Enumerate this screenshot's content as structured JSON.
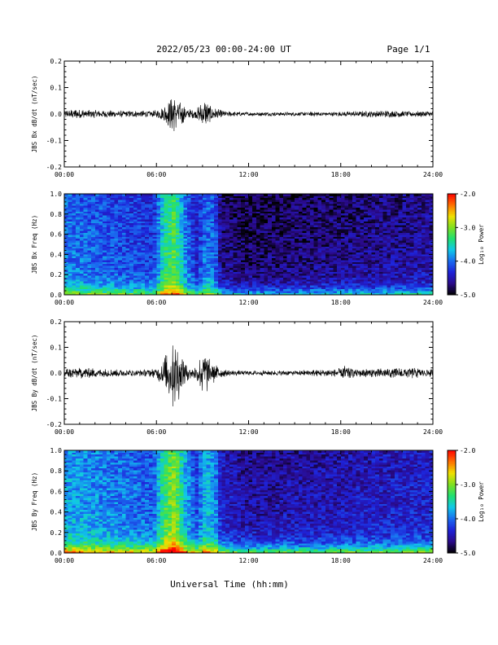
{
  "header": {
    "title": "2022/05/23  00:00-24:00 UT",
    "page": "Page 1/1"
  },
  "x_axis_label": "Universal Time (hh:mm)",
  "x_ticks": [
    "00:00",
    "06:00",
    "12:00",
    "18:00",
    "24:00"
  ],
  "colorbar": {
    "label": "Log₁₀ Power",
    "ticks": [
      "-2.0",
      "-3.0",
      "-4.0",
      "-5.0"
    ],
    "range": [
      -5.0,
      -2.0
    ],
    "colors": [
      "#000000",
      "#2a0a8a",
      "#1e22d8",
      "#1a6cf0",
      "#10c8e8",
      "#20e070",
      "#80e020",
      "#f0e000",
      "#ff7000",
      "#ff0000"
    ]
  },
  "chart_data": [
    {
      "type": "line",
      "ylabel": "JBS Bx dB/dt (nT/sec)",
      "ylim": [
        -0.2,
        0.2
      ],
      "yticks": [
        "0.2",
        "0.1",
        "0.0",
        "-0.1",
        "-0.2"
      ],
      "xlim_hours": [
        0,
        24
      ],
      "color": "#000000",
      "envelope": [
        {
          "t": 0.0,
          "amp": 0.012
        },
        {
          "t": 1.0,
          "amp": 0.015
        },
        {
          "t": 2.0,
          "amp": 0.012
        },
        {
          "t": 3.0,
          "amp": 0.011
        },
        {
          "t": 4.0,
          "amp": 0.01
        },
        {
          "t": 5.0,
          "amp": 0.01
        },
        {
          "t": 6.0,
          "amp": 0.012
        },
        {
          "t": 6.6,
          "amp": 0.03
        },
        {
          "t": 7.1,
          "amp": 0.055
        },
        {
          "t": 7.5,
          "amp": 0.045
        },
        {
          "t": 8.0,
          "amp": 0.015
        },
        {
          "t": 8.6,
          "amp": 0.015
        },
        {
          "t": 9.1,
          "amp": 0.045
        },
        {
          "t": 9.6,
          "amp": 0.02
        },
        {
          "t": 10.5,
          "amp": 0.008
        },
        {
          "t": 12.0,
          "amp": 0.006
        },
        {
          "t": 15.0,
          "amp": 0.006
        },
        {
          "t": 18.0,
          "amp": 0.007
        },
        {
          "t": 20.0,
          "amp": 0.01
        },
        {
          "t": 22.0,
          "amp": 0.01
        },
        {
          "t": 24.0,
          "amp": 0.009
        }
      ]
    },
    {
      "type": "heatmap",
      "ylabel": "JBS Bx Freq (Hz)",
      "ylim": [
        0.0,
        1.0
      ],
      "yticks": [
        "1.0",
        "0.8",
        "0.6",
        "0.4",
        "0.2",
        "0.0"
      ],
      "xlim_hours": [
        0,
        24
      ],
      "zlim": [
        -5.0,
        -2.0
      ],
      "columns": 96,
      "rows": 52,
      "power_profile": [
        {
          "t": 0.0,
          "z": -3.9
        },
        {
          "t": 2.0,
          "z": -4.0
        },
        {
          "t": 4.0,
          "z": -4.1
        },
        {
          "t": 5.8,
          "z": -4.2
        },
        {
          "t": 6.5,
          "z": -3.4
        },
        {
          "t": 7.2,
          "z": -3.1
        },
        {
          "t": 7.8,
          "z": -3.8
        },
        {
          "t": 8.6,
          "z": -4.3
        },
        {
          "t": 9.2,
          "z": -3.9
        },
        {
          "t": 9.8,
          "z": -4.0
        },
        {
          "t": 10.2,
          "z": -4.6
        },
        {
          "t": 12.0,
          "z": -4.7
        },
        {
          "t": 18.0,
          "z": -4.6
        },
        {
          "t": 24.0,
          "z": -4.5
        }
      ],
      "low_freq_boost": 1.1
    },
    {
      "type": "line",
      "ylabel": "JBS By dB/dt (nT/sec)",
      "ylim": [
        -0.2,
        0.2
      ],
      "yticks": [
        "0.2",
        "0.1",
        "0.0",
        "-0.1",
        "-0.2"
      ],
      "xlim_hours": [
        0,
        24
      ],
      "color": "#000000",
      "envelope": [
        {
          "t": 0.0,
          "amp": 0.015
        },
        {
          "t": 1.0,
          "amp": 0.018
        },
        {
          "t": 2.0,
          "amp": 0.014
        },
        {
          "t": 3.0,
          "amp": 0.012
        },
        {
          "t": 4.0,
          "amp": 0.011
        },
        {
          "t": 5.0,
          "amp": 0.01
        },
        {
          "t": 6.0,
          "amp": 0.015
        },
        {
          "t": 6.6,
          "amp": 0.06
        },
        {
          "t": 7.1,
          "amp": 0.11
        },
        {
          "t": 7.5,
          "amp": 0.08
        },
        {
          "t": 8.0,
          "amp": 0.025
        },
        {
          "t": 8.6,
          "amp": 0.02
        },
        {
          "t": 9.1,
          "amp": 0.08
        },
        {
          "t": 9.6,
          "amp": 0.035
        },
        {
          "t": 10.5,
          "amp": 0.01
        },
        {
          "t": 12.0,
          "amp": 0.008
        },
        {
          "t": 15.0,
          "amp": 0.008
        },
        {
          "t": 17.8,
          "amp": 0.012
        },
        {
          "t": 18.2,
          "amp": 0.025
        },
        {
          "t": 19.0,
          "amp": 0.012
        },
        {
          "t": 21.0,
          "amp": 0.015
        },
        {
          "t": 22.5,
          "amp": 0.018
        },
        {
          "t": 24.0,
          "amp": 0.012
        }
      ]
    },
    {
      "type": "heatmap",
      "ylabel": "JBS By Freq (Hz)",
      "ylim": [
        0.0,
        1.0
      ],
      "yticks": [
        "1.0",
        "0.8",
        "0.6",
        "0.4",
        "0.2",
        "0.0"
      ],
      "xlim_hours": [
        0,
        24
      ],
      "zlim": [
        -5.0,
        -2.0
      ],
      "columns": 96,
      "rows": 52,
      "power_profile": [
        {
          "t": 0.0,
          "z": -3.7
        },
        {
          "t": 2.0,
          "z": -3.8
        },
        {
          "t": 4.0,
          "z": -3.9
        },
        {
          "t": 5.8,
          "z": -4.0
        },
        {
          "t": 6.5,
          "z": -3.2
        },
        {
          "t": 7.2,
          "z": -2.9
        },
        {
          "t": 7.8,
          "z": -3.6
        },
        {
          "t": 8.6,
          "z": -4.1
        },
        {
          "t": 9.2,
          "z": -3.6
        },
        {
          "t": 9.8,
          "z": -3.8
        },
        {
          "t": 10.2,
          "z": -4.3
        },
        {
          "t": 12.0,
          "z": -4.5
        },
        {
          "t": 18.0,
          "z": -4.4
        },
        {
          "t": 24.0,
          "z": -4.3
        }
      ],
      "low_freq_boost": 1.5
    }
  ]
}
